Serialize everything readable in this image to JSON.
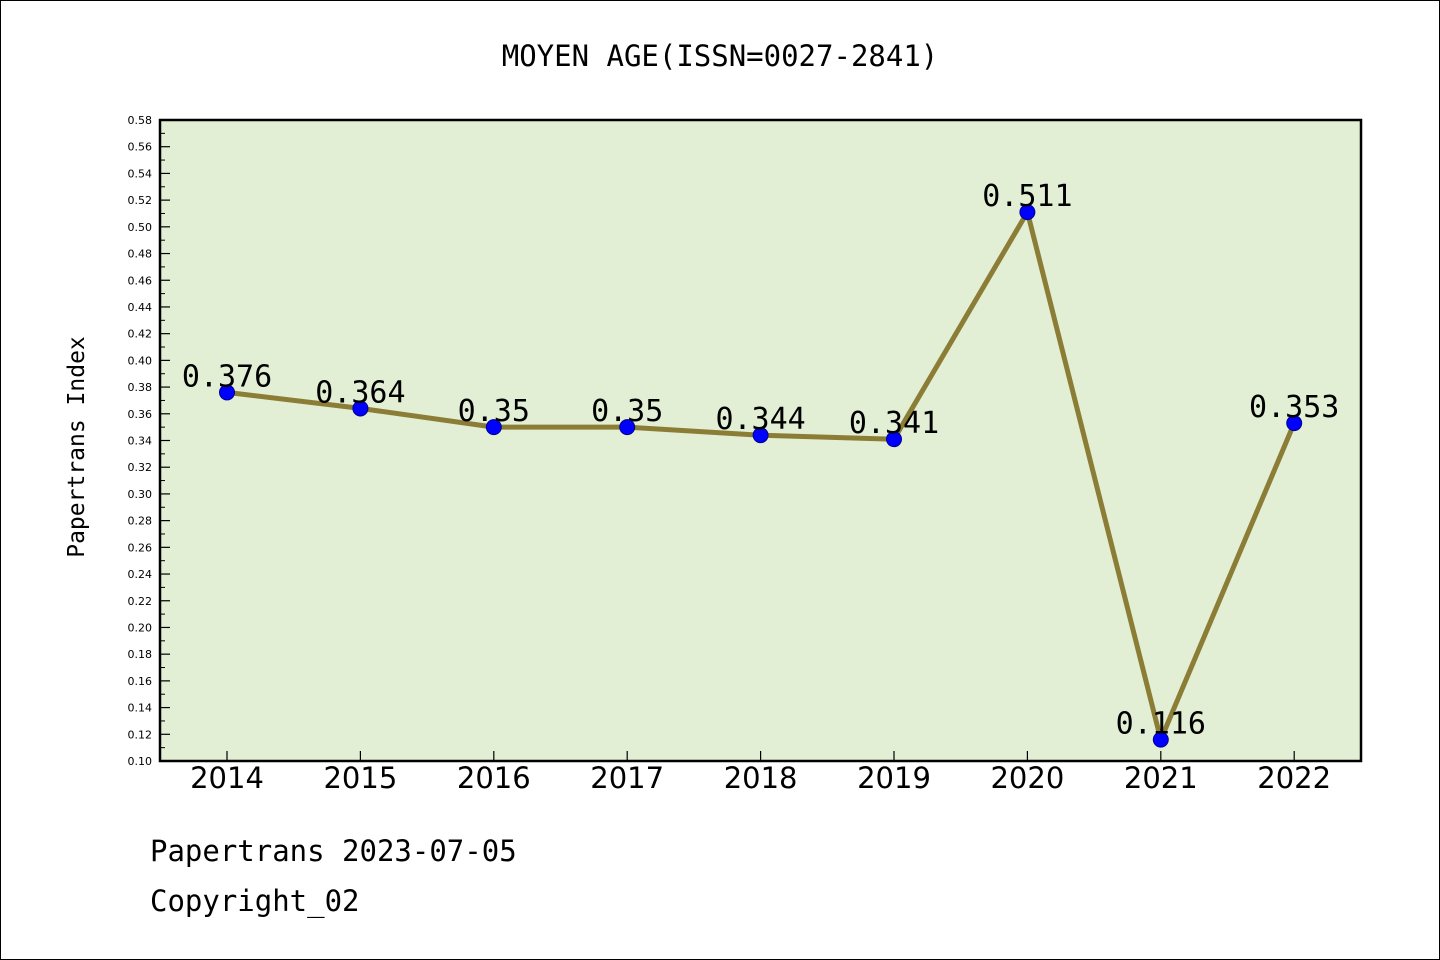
{
  "chart_data": {
    "type": "line",
    "title": "MOYEN AGE(ISSN=0027-2841)",
    "xlabel": "",
    "ylabel": "Papertrans Index",
    "categories": [
      "2014",
      "2015",
      "2016",
      "2017",
      "2018",
      "2019",
      "2020",
      "2021",
      "2022"
    ],
    "series": [
      {
        "values": [
          0.376,
          0.364,
          0.35,
          0.35,
          0.344,
          0.341,
          0.511,
          0.116,
          0.353
        ],
        "labels": [
          "0.376",
          "0.364",
          "0.35",
          "0.35",
          "0.344",
          "0.341",
          "0.511",
          "0.116",
          "0.353"
        ]
      }
    ],
    "ylim": [
      0.1,
      0.58
    ],
    "ytick_step": 0.02,
    "ytick_labels": [
      "0.10",
      "0.12",
      "0.14",
      "0.16",
      "0.18",
      "0.20",
      "0.22",
      "0.24",
      "0.26",
      "0.28",
      "0.30",
      "0.32",
      "0.34",
      "0.36",
      "0.38",
      "0.40",
      "0.42",
      "0.44",
      "0.46",
      "0.48",
      "0.50",
      "0.52",
      "0.54",
      "0.56",
      "0.58"
    ],
    "grid": false,
    "colors": {
      "plot_background": "#e2efd5",
      "line": "#8b7d35",
      "marker": "#0000ff",
      "axis": "#000000"
    }
  },
  "footer": {
    "source": "Papertrans 2023-07-05",
    "copyright": "Copyright_02"
  }
}
